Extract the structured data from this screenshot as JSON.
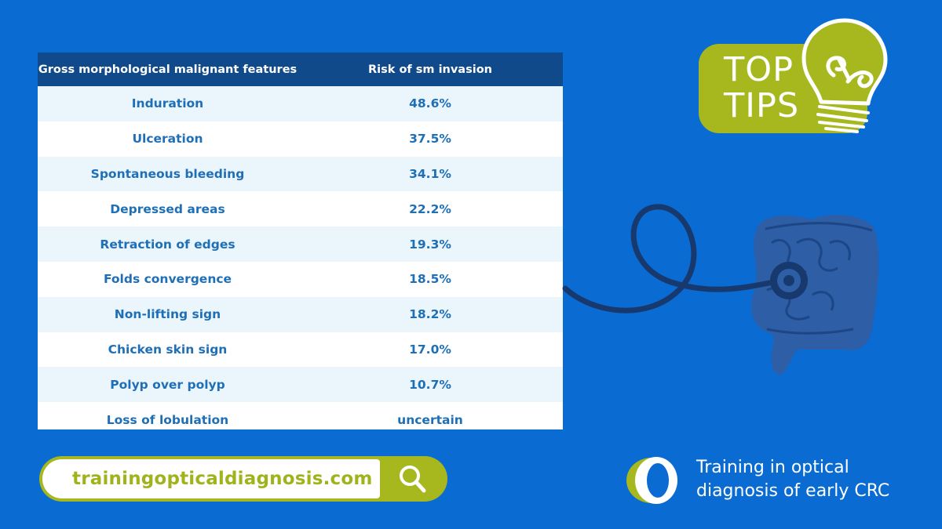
{
  "table": {
    "headers": [
      "Gross morphological malignant features",
      "Risk of sm invasion"
    ],
    "rows": [
      {
        "feature": "Induration",
        "risk": "48.6%"
      },
      {
        "feature": "Ulceration",
        "risk": "37.5%"
      },
      {
        "feature": "Spontaneous bleeding",
        "risk": "34.1%"
      },
      {
        "feature": "Depressed areas",
        "risk": "22.2%"
      },
      {
        "feature": "Retraction of edges",
        "risk": "19.3%"
      },
      {
        "feature": "Folds convergence",
        "risk": "18.5%"
      },
      {
        "feature": "Non-lifting sign",
        "risk": "18.2%"
      },
      {
        "feature": "Chicken skin sign",
        "risk": "17.0%"
      },
      {
        "feature": "Polyp over polyp",
        "risk": "10.7%"
      },
      {
        "feature": "Loss of lobulation",
        "risk": "uncertain"
      }
    ]
  },
  "badge": {
    "line1": "TOP",
    "line2": "TIPS"
  },
  "search": {
    "url": "trainingopticaldiagnosis.com"
  },
  "brand": {
    "line1": "Training in optical",
    "line2": "diagnosis of early CRC"
  },
  "icons": {
    "search": "search-icon",
    "bulb": "lightbulb-icon",
    "logo": "brand-logo-icon"
  },
  "colors": {
    "background": "#0a6bd2",
    "header": "#104a8a",
    "accent": "#a6b81d",
    "cellText": "#1f6fb6"
  }
}
